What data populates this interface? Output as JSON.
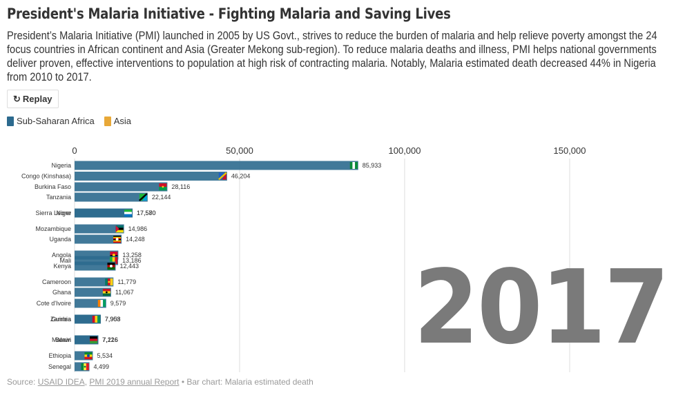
{
  "title": "President's Malaria Initiative - Fighting Malaria and Saving Lives",
  "subtitle": "President’s Malaria Initiative (PMI) launched in 2005 by US Govt., strives to reduce the burden of malaria and help relieve poverty amongst the 24 focus countries in African continent and Asia (Greater Mekong sub-region). To reduce malaria deaths and illness, PMI helps national governments deliver proven, effective interventions to population at high risk of contracting malaria. Notably, Malaria estimated death decreased 44% in Nigeria from 2010 to 2017.",
  "replay_label": "Replay",
  "replay_icon": "↻",
  "legend": [
    {
      "label": "Sub-Saharan Africa",
      "color": "#2c6a8e"
    },
    {
      "label": "Asia",
      "color": "#e8a838"
    }
  ],
  "year": "2017",
  "footer": {
    "prefix": "Source: ",
    "link1": "USAID IDEA",
    "sep": ", ",
    "link2": "PMI 2019 annual Report",
    "suffix": " • Bar chart: Malaria estimated death"
  },
  "chart_data": {
    "type": "bar",
    "orientation": "horizontal",
    "year": "2017",
    "xlim": [
      0,
      160000
    ],
    "xticks": [
      0,
      50000,
      100000,
      150000
    ],
    "xtick_labels": [
      "0",
      "50,000",
      "100,000",
      "150,000"
    ],
    "grid": true,
    "bar_color": "#2c6a8e",
    "categories": [
      "Nigeria",
      "Congo (Kinshasa)",
      "Burkina Faso",
      "Tanzania",
      "Niger",
      "Sierra Leone",
      "Mozambique",
      "Uganda",
      "Angola",
      "Mali",
      "Kenya",
      "Cameroon",
      "Ghana",
      "Cote d'Ivoire",
      "Zambia",
      "Guinea",
      "Benin",
      "Malawi",
      "Ethiopia",
      "Senegal"
    ],
    "values": [
      85933,
      46204,
      28116,
      22144,
      17580,
      17570,
      14986,
      14248,
      13258,
      13186,
      12443,
      11779,
      11067,
      9579,
      7958,
      7903,
      7216,
      7126,
      5534,
      4499
    ],
    "value_labels": [
      "85,933",
      "46,204",
      "28,116",
      "22,144",
      "17,580",
      "17,570",
      "14,986",
      "14,248",
      "13,258",
      "13,186",
      "12,443",
      "11,779",
      "11,067",
      "9,579",
      "7,958",
      "7,903",
      "7,216",
      "7,126",
      "5,534",
      "4,499"
    ],
    "regions": [
      "Sub-Saharan Africa",
      "Sub-Saharan Africa",
      "Sub-Saharan Africa",
      "Sub-Saharan Africa",
      "Sub-Saharan Africa",
      "Sub-Saharan Africa",
      "Sub-Saharan Africa",
      "Sub-Saharan Africa",
      "Sub-Saharan Africa",
      "Sub-Saharan Africa",
      "Sub-Saharan Africa",
      "Sub-Saharan Africa",
      "Sub-Saharan Africa",
      "Sub-Saharan Africa",
      "Sub-Saharan Africa",
      "Sub-Saharan Africa",
      "Sub-Saharan Africa",
      "Sub-Saharan Africa",
      "Sub-Saharan Africa",
      "Sub-Saharan Africa"
    ],
    "flags": [
      {
        "type": "v",
        "colors": [
          "#0a8a3a",
          "#ffffff",
          "#0a8a3a"
        ]
      },
      {
        "type": "diag",
        "colors": [
          "#1a5fc8",
          "#e8c300",
          "#ce1126"
        ]
      },
      {
        "type": "h",
        "colors": [
          "#ce1126",
          "#009e49"
        ],
        "star": "#fcd116"
      },
      {
        "type": "diag",
        "colors": [
          "#1eb53a",
          "#000000",
          "#00a3dd"
        ]
      },
      {
        "type": "h",
        "colors": [
          "#e05206",
          "#ffffff",
          "#0db02b"
        ],
        "dot": "#e05206"
      },
      {
        "type": "h",
        "colors": [
          "#1eb53a",
          "#ffffff",
          "#0072c6"
        ]
      },
      {
        "type": "h",
        "colors": [
          "#007168",
          "#000000",
          "#fce100"
        ],
        "tri": "#d21034"
      },
      {
        "type": "h",
        "colors": [
          "#000000",
          "#fcdc04",
          "#d90000",
          "#000000",
          "#fcdc04",
          "#d90000"
        ],
        "dot": "#ffffff"
      },
      {
        "type": "h",
        "colors": [
          "#cc092f",
          "#000000"
        ],
        "dot": "#ffcb00"
      },
      {
        "type": "v",
        "colors": [
          "#14b53a",
          "#fcd116",
          "#ce1126"
        ]
      },
      {
        "type": "h",
        "colors": [
          "#000000",
          "#bb0000",
          "#006600"
        ],
        "dot": "#ffffff"
      },
      {
        "type": "v",
        "colors": [
          "#007a5e",
          "#ce1126",
          "#fcd116"
        ],
        "star": "#fcd116"
      },
      {
        "type": "h",
        "colors": [
          "#ce1126",
          "#fcd116",
          "#006b3f"
        ],
        "star": "#000000"
      },
      {
        "type": "v",
        "colors": [
          "#f77f00",
          "#ffffff",
          "#009e60"
        ]
      },
      {
        "type": "v",
        "colors": [
          "#198a00",
          "#198a00",
          "#198a00",
          "#de2010"
        ]
      },
      {
        "type": "v",
        "colors": [
          "#ce1126",
          "#fcd116",
          "#009460"
        ]
      },
      {
        "type": "vh",
        "colors": [
          "#008751",
          "#fcd116",
          "#e8112d"
        ]
      },
      {
        "type": "h",
        "colors": [
          "#000000",
          "#ce1126",
          "#339e35"
        ]
      },
      {
        "type": "h",
        "colors": [
          "#078930",
          "#fcdd09",
          "#da121a"
        ],
        "dot": "#0f47af"
      },
      {
        "type": "v",
        "colors": [
          "#00853f",
          "#fdef42",
          "#e31b23"
        ],
        "star": "#00853f"
      }
    ]
  }
}
